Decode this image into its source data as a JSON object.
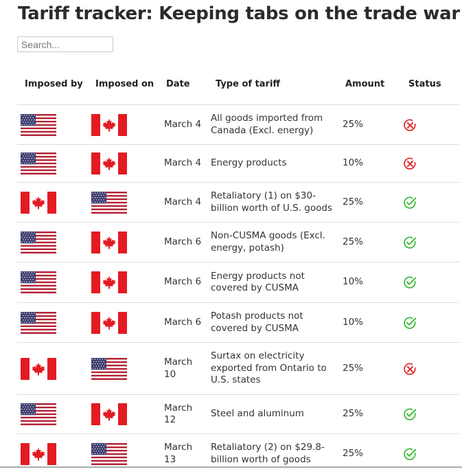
{
  "page": {
    "title": "Tariff tracker: Keeping tabs on the trade war"
  },
  "search": {
    "placeholder": "Search..."
  },
  "colors": {
    "canada_red": "#e31b23",
    "us_blue": "#3c3b6e",
    "us_red": "#b22234",
    "active_green": "#2fb82f",
    "inactive_red": "#e02020"
  },
  "table": {
    "headers": [
      "Imposed by",
      "Imposed on",
      "Date",
      "Type of tariff",
      "Amount",
      "Status"
    ],
    "rows": [
      {
        "by": "us-flag-icon",
        "on": "canada-flag-icon",
        "date": "March 4",
        "type": "All goods imported from Canada (Excl. energy)",
        "amount": "25%",
        "status": "inactive"
      },
      {
        "by": "us-flag-icon",
        "on": "canada-flag-icon",
        "date": "March 4",
        "type": "Energy products",
        "amount": "10%",
        "status": "inactive"
      },
      {
        "by": "canada-flag-icon",
        "on": "us-flag-icon",
        "date": "March 4",
        "type": "Retaliatory (1) on $30-billion worth of U.S. goods",
        "amount": "25%",
        "status": "active"
      },
      {
        "by": "us-flag-icon",
        "on": "canada-flag-icon",
        "date": "March 6",
        "type": "Non-CUSMA goods (Excl. energy, potash)",
        "amount": "25%",
        "status": "active"
      },
      {
        "by": "us-flag-icon",
        "on": "canada-flag-icon",
        "date": "March 6",
        "type": "Energy products not covered by CUSMA",
        "amount": "10%",
        "status": "active"
      },
      {
        "by": "us-flag-icon",
        "on": "canada-flag-icon",
        "date": "March 6",
        "type": "Potash products not covered by CUSMA",
        "amount": "10%",
        "status": "active"
      },
      {
        "by": "canada-flag-icon",
        "on": "us-flag-icon",
        "date": "March 10",
        "type": "Surtax on electricity exported from Ontario to U.S. states",
        "amount": "25%",
        "status": "inactive"
      },
      {
        "by": "us-flag-icon",
        "on": "canada-flag-icon",
        "date": "March 12",
        "type": "Steel and aluminum",
        "amount": "25%",
        "status": "active"
      },
      {
        "by": "canada-flag-icon",
        "on": "us-flag-icon",
        "date": "March 13",
        "type": "Retaliatory (2) on $29.8-billion worth of goods",
        "amount": "25%",
        "status": "active"
      }
    ]
  }
}
